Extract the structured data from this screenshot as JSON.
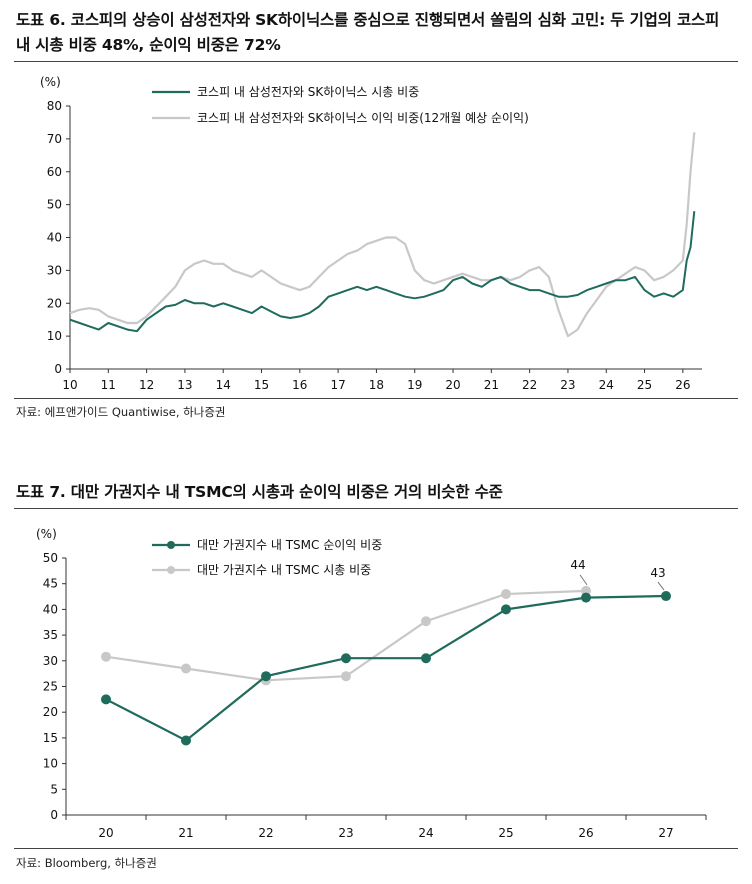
{
  "chart_data": [
    {
      "type": "line",
      "title": "도표 6. 코스피의 상승이 삼성전자와 SK하이닉스를 중심으로 진행되면서 쏠림의 심화 고민: 두 기업의 코스피 내 시총 비중 48%, 순이익 비중은 72%",
      "unit": "(%)",
      "source": "자료: 에프앤가이드 Quantiwise, 하나증권",
      "xlim": [
        10,
        26.5
      ],
      "ylim": [
        0,
        80
      ],
      "x_ticks": [
        "10",
        "11",
        "12",
        "13",
        "14",
        "15",
        "16",
        "17",
        "18",
        "19",
        "20",
        "21",
        "22",
        "23",
        "24",
        "25",
        "26"
      ],
      "y_ticks": [
        "0",
        "10",
        "20",
        "30",
        "40",
        "50",
        "60",
        "70",
        "80"
      ],
      "legend_position": "top",
      "series": [
        {
          "name": "코스피 내 삼성전자와 SK하이닉스 시총 비중",
          "color": "#1f6b5c",
          "x": [
            10.0,
            10.25,
            10.5,
            10.75,
            11.0,
            11.25,
            11.5,
            11.75,
            12.0,
            12.25,
            12.5,
            12.75,
            13.0,
            13.25,
            13.5,
            13.75,
            14.0,
            14.25,
            14.5,
            14.75,
            15.0,
            15.25,
            15.5,
            15.75,
            16.0,
            16.25,
            16.5,
            16.75,
            17.0,
            17.25,
            17.5,
            17.75,
            18.0,
            18.25,
            18.5,
            18.75,
            19.0,
            19.25,
            19.5,
            19.75,
            20.0,
            20.25,
            20.5,
            20.75,
            21.0,
            21.25,
            21.5,
            21.75,
            22.0,
            22.25,
            22.5,
            22.75,
            23.0,
            23.25,
            23.5,
            23.75,
            24.0,
            24.25,
            24.5,
            24.75,
            25.0,
            25.25,
            25.5,
            25.75,
            26.0,
            26.1,
            26.2,
            26.3
          ],
          "y": [
            15,
            14,
            13,
            12,
            14,
            13,
            12,
            11.5,
            15,
            17,
            19,
            19.5,
            21,
            20,
            20,
            19,
            20,
            19,
            18,
            17,
            19,
            17.5,
            16,
            15.5,
            16,
            17,
            19,
            22,
            23,
            24,
            25,
            24,
            25,
            24,
            23,
            22,
            21.5,
            22,
            23,
            24,
            27,
            28,
            26,
            25,
            27,
            28,
            26,
            25,
            24,
            24,
            23,
            22,
            22,
            22.5,
            24,
            25,
            26,
            27,
            27,
            28,
            24,
            22,
            23,
            22,
            24,
            33,
            37,
            48
          ]
        },
        {
          "name": "코스피 내 삼성전자와 SK하이닉스 이익 비중(12개월 예상 순이익)",
          "color": "#c8c8c8",
          "x": [
            10.0,
            10.25,
            10.5,
            10.75,
            11.0,
            11.25,
            11.5,
            11.75,
            12.0,
            12.25,
            12.5,
            12.75,
            13.0,
            13.25,
            13.5,
            13.75,
            14.0,
            14.25,
            14.5,
            14.75,
            15.0,
            15.25,
            15.5,
            15.75,
            16.0,
            16.25,
            16.5,
            16.75,
            17.0,
            17.25,
            17.5,
            17.75,
            18.0,
            18.25,
            18.5,
            18.75,
            19.0,
            19.25,
            19.5,
            19.75,
            20.0,
            20.25,
            20.5,
            20.75,
            21.0,
            21.25,
            21.5,
            21.75,
            22.0,
            22.25,
            22.5,
            22.75,
            23.0,
            23.25,
            23.5,
            23.75,
            24.0,
            24.25,
            24.5,
            24.75,
            25.0,
            25.25,
            25.5,
            25.75,
            26.0,
            26.1,
            26.2,
            26.3
          ],
          "y": [
            17,
            18,
            18.5,
            18,
            16,
            15,
            14,
            14,
            16,
            19,
            22,
            25,
            30,
            32,
            33,
            32,
            32,
            30,
            29,
            28,
            30,
            28,
            26,
            25,
            24,
            25,
            28,
            31,
            33,
            35,
            36,
            38,
            39,
            40,
            40,
            38,
            30,
            27,
            26,
            27,
            28,
            29,
            28,
            27,
            27,
            28,
            27,
            28,
            30,
            31,
            28,
            18,
            10,
            12,
            17,
            21,
            25,
            27,
            29,
            31,
            30,
            27,
            28,
            30,
            33,
            44,
            60,
            72
          ]
        }
      ]
    },
    {
      "type": "line",
      "title": "도표 7. 대만 가권지수 내 TSMC의 시총과 순이익 비중은 거의 비슷한 수준",
      "unit": "(%)",
      "source": "자료: Bloomberg, 하나증권",
      "categories": [
        "20",
        "21",
        "22",
        "23",
        "24",
        "25",
        "26",
        "27"
      ],
      "ylim": [
        0,
        50
      ],
      "y_ticks": [
        "0",
        "5",
        "10",
        "15",
        "20",
        "25",
        "30",
        "35",
        "40",
        "45",
        "50"
      ],
      "legend_position": "top",
      "series": [
        {
          "name": "대만 가권지수 내 TSMC 순이익 비중",
          "color": "#1f6b5c",
          "values": [
            22.5,
            14.5,
            27,
            30.5,
            30.5,
            40,
            42.3,
            42.6
          ],
          "end_label": "43"
        },
        {
          "name": "대만 가권지수 내 TSMC 시총 비중",
          "color": "#c8c8c8",
          "values": [
            30.8,
            28.5,
            26.2,
            27,
            37.7,
            43,
            43.6,
            null
          ],
          "end_label": "44"
        }
      ]
    }
  ]
}
